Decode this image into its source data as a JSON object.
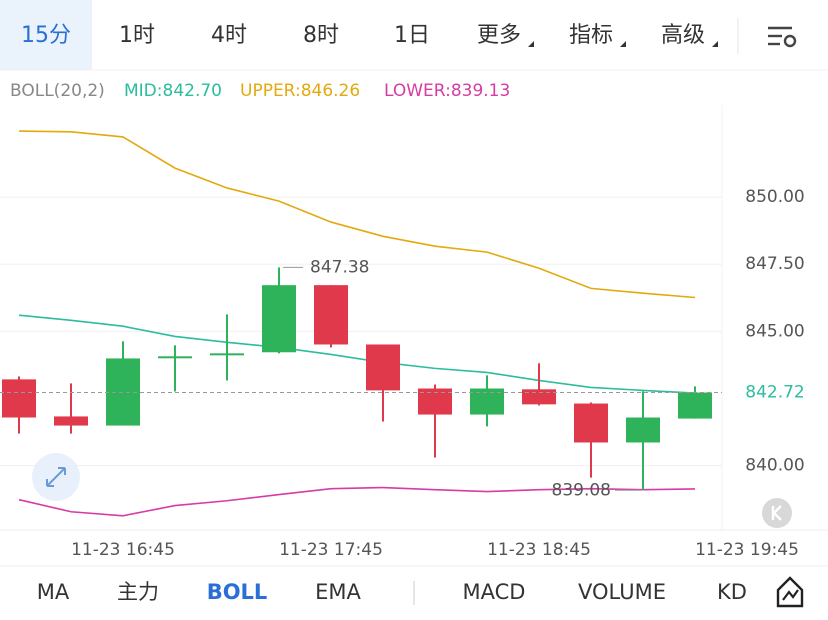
{
  "tabs": [
    "15分",
    "1时",
    "4时",
    "8时",
    "1日",
    "更多",
    "指标",
    "高级"
  ],
  "bottom_tabs": [
    "MA",
    "主力",
    "BOLL",
    "EMA",
    "MACD",
    "VOLUME",
    "KD"
  ],
  "chart_data": {
    "type": "candlestick",
    "indicator": "BOLL(20,2)",
    "categories": [
      null,
      null,
      "11-23 16:45",
      null,
      null,
      null,
      "11-23 17:45",
      null,
      null,
      null,
      "11-23 18:45",
      null,
      null,
      null,
      "11-23 19:45"
    ],
    "open": [
      843.21,
      841.83,
      841.49,
      844.03,
      844.14,
      844.22,
      846.72,
      844.51,
      842.87,
      841.9,
      842.84,
      842.31,
      840.86,
      841.75,
      null
    ],
    "high": [
      843.32,
      843.06,
      844.63,
      844.48,
      845.63,
      847.38,
      846.72,
      844.51,
      843.02,
      843.36,
      843.81,
      842.35,
      842.76,
      842.95,
      null
    ],
    "low": [
      841.19,
      841.19,
      841.49,
      842.76,
      843.17,
      844.18,
      844.4,
      841.64,
      840.3,
      841.46,
      842.24,
      839.55,
      839.08,
      841.75,
      null
    ],
    "close": [
      841.79,
      841.49,
      843.99,
      844.07,
      844.18,
      846.72,
      844.51,
      842.8,
      841.9,
      842.87,
      842.28,
      840.86,
      841.79,
      842.72,
      null
    ],
    "up_color": "#2fb35a",
    "down_color": "#e0394c",
    "series": [
      {
        "name": "MID:842.70",
        "color": "#2bbd9c",
        "values": [
          845.6,
          845.41,
          845.19,
          844.81,
          844.59,
          844.4,
          844.14,
          843.84,
          843.62,
          843.47,
          843.17,
          842.91,
          842.8,
          842.7,
          null
        ]
      },
      {
        "name": "UPPER:846.26",
        "color": "#e3a90e",
        "values": [
          852.46,
          852.43,
          852.24,
          851.08,
          850.34,
          849.85,
          849.07,
          848.54,
          848.17,
          847.95,
          847.35,
          846.6,
          846.42,
          846.26,
          null
        ]
      },
      {
        "name": "LOWER:839.13",
        "color": "#d63ba6",
        "values": [
          838.73,
          838.28,
          838.13,
          838.51,
          838.69,
          838.92,
          839.14,
          839.18,
          839.1,
          839.03,
          839.1,
          839.14,
          839.1,
          839.13,
          null
        ]
      }
    ],
    "ylim": [
      837.6,
      853.43
    ],
    "yticks": [
      {
        "value": 840,
        "label": "840.00"
      },
      {
        "value": 845,
        "label": "845.00"
      },
      {
        "value": 847.5,
        "label": "847.50"
      },
      {
        "value": 850,
        "label": "850.00"
      }
    ],
    "last_price": 842.72,
    "grid": true
  }
}
